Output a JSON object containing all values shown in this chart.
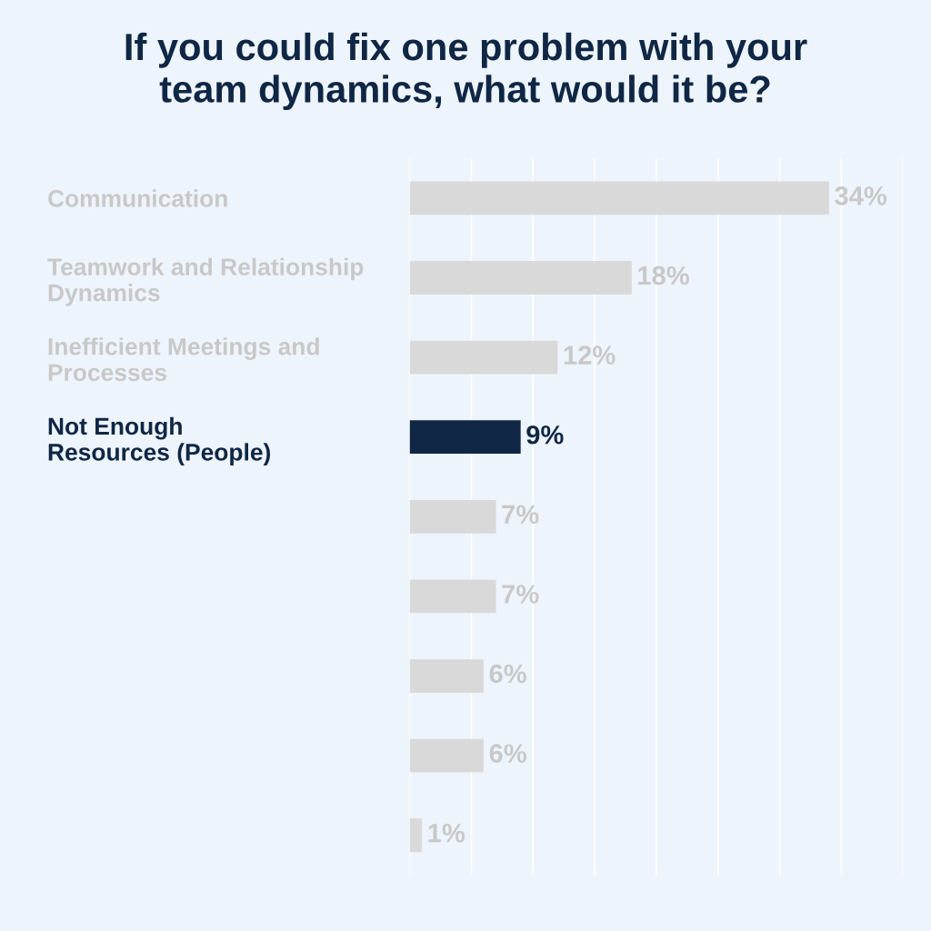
{
  "chart_data": {
    "type": "bar",
    "orientation": "horizontal",
    "title": "If you could fix one problem with your\nteam dynamics, what would it be?",
    "categories": [
      "Communication",
      "Teamwork and Relationship\nDynamics",
      "Inefficient Meetings and\nProcesses",
      "Not Enough\nResources (People)",
      null,
      null,
      null,
      null,
      null
    ],
    "values": [
      34,
      18,
      12,
      9,
      7,
      7,
      6,
      6,
      1
    ],
    "colors": [
      "#d9d9d9",
      "#d9d9d9",
      "#d9d9d9",
      "#0f2744",
      "#d9d9d9",
      "#d9d9d9",
      "#d9d9d9",
      "#d9d9d9",
      "#d9d9d9"
    ],
    "value_labels": [
      "34%",
      "18%",
      "12%",
      "9%",
      "7%",
      "7%",
      "6%",
      "6%",
      "1%"
    ],
    "xlim": [
      0,
      40
    ],
    "xticks": [
      {
        "value": 0,
        "label": null
      },
      {
        "value": 5,
        "label": null
      },
      {
        "value": 10,
        "label": null
      },
      {
        "value": 15,
        "label": null
      },
      {
        "value": 20,
        "label": null
      },
      {
        "value": 25,
        "label": null
      },
      {
        "value": 30,
        "label": null
      },
      {
        "value": 35,
        "label": null
      },
      {
        "value": 40,
        "label": null
      }
    ],
    "grid": "x",
    "tick_labels": "y"
  }
}
